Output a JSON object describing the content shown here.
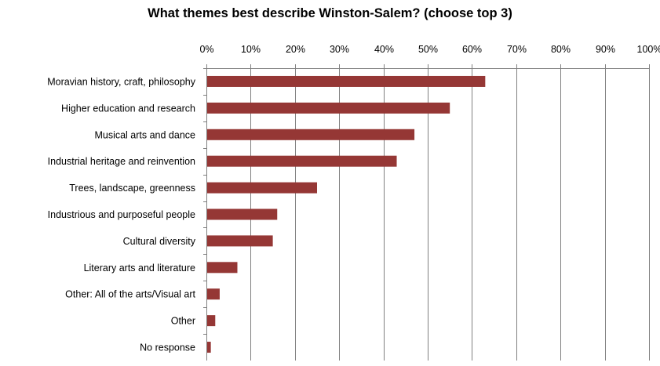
{
  "chart_data": {
    "type": "bar",
    "orientation": "horizontal",
    "title": "What themes best describe Winston-Salem? (choose top 3)",
    "xlabel": "",
    "ylabel": "",
    "categories": [
      "Moravian history, craft, philosophy",
      "Higher education and research",
      "Musical arts and dance",
      "Industrial heritage and reinvention",
      "Trees, landscape, greenness",
      "Industrious and purposeful people",
      "Cultural diversity",
      "Literary arts and literature",
      "Other: All of the arts/Visual art",
      "Other",
      "No response"
    ],
    "values": [
      63,
      55,
      47,
      43,
      25,
      16,
      15,
      7,
      3,
      2,
      1
    ],
    "unit": "%",
    "xlim": [
      0,
      100
    ],
    "ticks": [
      "0%",
      "10%",
      "20%",
      "30%",
      "40%",
      "50%",
      "60%",
      "70%",
      "80%",
      "90%",
      "100%"
    ],
    "axis_position": "top",
    "grid": true,
    "legend": "none",
    "bar_color": "#953735",
    "grid_color": "#808080"
  }
}
